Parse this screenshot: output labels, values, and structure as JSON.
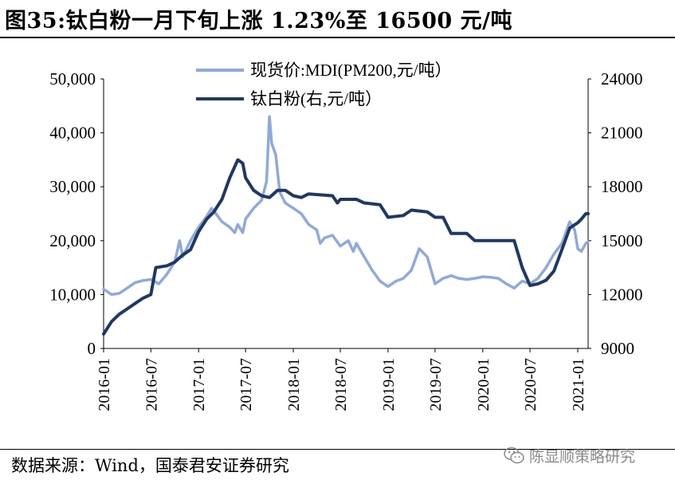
{
  "title": "图35:钛白粉一月下旬上涨 1.23%至 16500 元/吨",
  "source": "数据来源：Wind，国泰君安证券研究",
  "watermark": "陈显顺策略研究",
  "chart_data": {
    "type": "line",
    "x_ticks": [
      "2016-01",
      "2016-07",
      "2017-01",
      "2017-07",
      "2018-01",
      "2018-07",
      "2019-01",
      "2019-07",
      "2020-01",
      "2020-07",
      "2021-01"
    ],
    "left_axis": {
      "min": 0,
      "max": 50000,
      "ticks": [
        "0",
        "10,000",
        "20,000",
        "30,000",
        "40,000",
        "50,000"
      ]
    },
    "right_axis": {
      "min": 9000,
      "max": 24000,
      "ticks": [
        "9000",
        "12000",
        "15000",
        "18000",
        "21000",
        "24000"
      ]
    },
    "series": [
      {
        "name": "现货价:MDI(PM200,元/吨）",
        "axis": "left",
        "color": "#8fa9dc",
        "points": [
          [
            "2016-01-01",
            11000
          ],
          [
            "2016-02-01",
            10000
          ],
          [
            "2016-03-01",
            10200
          ],
          [
            "2016-04-01",
            11200
          ],
          [
            "2016-05-01",
            12200
          ],
          [
            "2016-06-01",
            12600
          ],
          [
            "2016-07-01",
            12800
          ],
          [
            "2016-08-01",
            12000
          ],
          [
            "2016-09-01",
            13800
          ],
          [
            "2016-10-01",
            16000
          ],
          [
            "2016-10-20",
            20000
          ],
          [
            "2016-11-01",
            17000
          ],
          [
            "2016-12-01",
            20000
          ],
          [
            "2017-01-01",
            22500
          ],
          [
            "2017-02-01",
            24500
          ],
          [
            "2017-02-20",
            26000
          ],
          [
            "2017-03-01",
            25500
          ],
          [
            "2017-04-01",
            23500
          ],
          [
            "2017-05-01",
            22500
          ],
          [
            "2017-05-20",
            21500
          ],
          [
            "2017-06-01",
            23000
          ],
          [
            "2017-06-20",
            21500
          ],
          [
            "2017-07-01",
            24000
          ],
          [
            "2017-08-01",
            26000
          ],
          [
            "2017-09-01",
            27500
          ],
          [
            "2017-09-20",
            31000
          ],
          [
            "2017-10-01",
            43000
          ],
          [
            "2017-10-10",
            38000
          ],
          [
            "2017-10-25",
            36000
          ],
          [
            "2017-11-10",
            29000
          ],
          [
            "2017-12-01",
            27000
          ],
          [
            "2018-01-01",
            26000
          ],
          [
            "2018-02-01",
            25000
          ],
          [
            "2018-03-01",
            23000
          ],
          [
            "2018-04-01",
            22000
          ],
          [
            "2018-04-15",
            19500
          ],
          [
            "2018-05-01",
            20500
          ],
          [
            "2018-06-01",
            21000
          ],
          [
            "2018-07-01",
            19000
          ],
          [
            "2018-08-01",
            20000
          ],
          [
            "2018-08-20",
            18000
          ],
          [
            "2018-09-01",
            19500
          ],
          [
            "2018-10-01",
            17000
          ],
          [
            "2018-11-01",
            14500
          ],
          [
            "2018-12-01",
            12500
          ],
          [
            "2019-01-01",
            11500
          ],
          [
            "2019-02-01",
            12500
          ],
          [
            "2019-03-01",
            13000
          ],
          [
            "2019-04-01",
            14500
          ],
          [
            "2019-05-01",
            18500
          ],
          [
            "2019-06-01",
            17000
          ],
          [
            "2019-07-01",
            12000
          ],
          [
            "2019-08-01",
            13000
          ],
          [
            "2019-09-01",
            13500
          ],
          [
            "2019-10-01",
            13000
          ],
          [
            "2019-11-01",
            12800
          ],
          [
            "2019-12-01",
            13000
          ],
          [
            "2020-01-01",
            13300
          ],
          [
            "2020-02-01",
            13200
          ],
          [
            "2020-03-01",
            13000
          ],
          [
            "2020-04-01",
            12000
          ],
          [
            "2020-05-01",
            11200
          ],
          [
            "2020-06-01",
            12500
          ],
          [
            "2020-07-01",
            12000
          ],
          [
            "2020-08-01",
            13000
          ],
          [
            "2020-09-01",
            15000
          ],
          [
            "2020-10-01",
            17500
          ],
          [
            "2020-11-01",
            19500
          ],
          [
            "2020-12-01",
            23500
          ],
          [
            "2020-12-20",
            22000
          ],
          [
            "2021-01-01",
            18500
          ],
          [
            "2021-01-15",
            18000
          ],
          [
            "2021-02-01",
            19500
          ],
          [
            "2021-02-10",
            19800
          ]
        ]
      },
      {
        "name": "钛白粉(右,元/吨）",
        "axis": "right",
        "color": "#1f3864",
        "points": [
          [
            "2016-01-01",
            9800
          ],
          [
            "2016-02-01",
            10500
          ],
          [
            "2016-03-01",
            10900
          ],
          [
            "2016-04-01",
            11200
          ],
          [
            "2016-05-01",
            11500
          ],
          [
            "2016-06-01",
            11800
          ],
          [
            "2016-07-01",
            12000
          ],
          [
            "2016-07-20",
            13500
          ],
          [
            "2016-09-01",
            13600
          ],
          [
            "2016-10-01",
            13800
          ],
          [
            "2016-11-01",
            14200
          ],
          [
            "2016-12-01",
            14500
          ],
          [
            "2017-01-01",
            15500
          ],
          [
            "2017-02-01",
            16200
          ],
          [
            "2017-03-01",
            16600
          ],
          [
            "2017-04-01",
            17300
          ],
          [
            "2017-05-01",
            18500
          ],
          [
            "2017-06-01",
            19500
          ],
          [
            "2017-06-20",
            19300
          ],
          [
            "2017-07-01",
            18500
          ],
          [
            "2017-08-01",
            17800
          ],
          [
            "2017-09-01",
            17500
          ],
          [
            "2017-10-01",
            17400
          ],
          [
            "2017-11-01",
            17800
          ],
          [
            "2017-12-01",
            17800
          ],
          [
            "2018-01-01",
            17500
          ],
          [
            "2018-02-01",
            17400
          ],
          [
            "2018-03-01",
            17600
          ],
          [
            "2018-06-01",
            17500
          ],
          [
            "2018-06-20",
            17100
          ],
          [
            "2018-07-01",
            17300
          ],
          [
            "2018-09-01",
            17300
          ],
          [
            "2018-10-01",
            17100
          ],
          [
            "2018-12-01",
            17000
          ],
          [
            "2019-01-01",
            16300
          ],
          [
            "2019-03-01",
            16400
          ],
          [
            "2019-04-01",
            16700
          ],
          [
            "2019-06-01",
            16600
          ],
          [
            "2019-07-01",
            16300
          ],
          [
            "2019-08-01",
            16300
          ],
          [
            "2019-09-01",
            15400
          ],
          [
            "2019-11-01",
            15400
          ],
          [
            "2019-12-01",
            15000
          ],
          [
            "2020-01-01",
            15000
          ],
          [
            "2020-05-01",
            15000
          ],
          [
            "2020-06-01",
            13500
          ],
          [
            "2020-07-01",
            12500
          ],
          [
            "2020-08-01",
            12600
          ],
          [
            "2020-09-01",
            12800
          ],
          [
            "2020-10-01",
            13300
          ],
          [
            "2020-11-01",
            14500
          ],
          [
            "2020-12-01",
            15700
          ],
          [
            "2021-01-01",
            16000
          ],
          [
            "2021-01-15",
            16200
          ],
          [
            "2021-02-01",
            16500
          ],
          [
            "2021-02-10",
            16500
          ]
        ]
      }
    ]
  }
}
